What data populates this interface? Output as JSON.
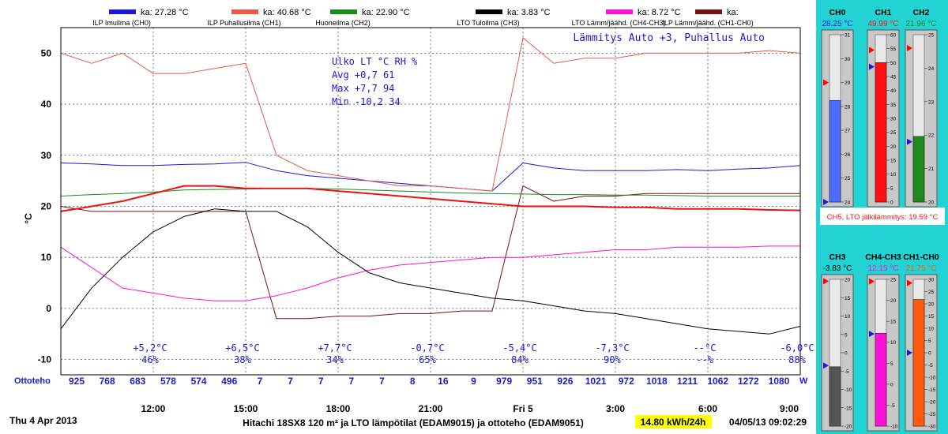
{
  "header": {
    "legend": [
      {
        "name": "ILP Imuilma (CH0)",
        "ka": "ka: 27.28 °C",
        "color": "#1a1ad4"
      },
      {
        "name": "ILP Puhallusilma (CH1)",
        "ka": "ka: 40.68 °C",
        "color": "#e85a4a"
      },
      {
        "name": "Huoneilma (CH2)",
        "ka": "ka: 22.90 °C",
        "color": "#1e8a1e"
      },
      {
        "name": "LTO Tuloilma (CH3)",
        "ka": "ka: 3.83 °C",
        "color": "#000000"
      },
      {
        "name": "LTO Lämm/jäähd. (CH4-CH3)",
        "ka": "ka: 8.72 °C",
        "color": "#ff10d8"
      },
      {
        "name": "ILP Lämm/jäähd. (CH1-CH0)",
        "ka": "ka:",
        "color": "#7a1010"
      }
    ]
  },
  "overlay": {
    "mode": "Lämmitys Auto +3, Puhallus Auto",
    "stats": [
      "Ulko LT °C RH %",
      " Avg  +0,7  61",
      " Max  +7,7  94",
      " Min -10,2  34"
    ]
  },
  "outdoor": [
    {
      "t": "+5,2°C",
      "rh": "46%"
    },
    {
      "t": "+6,5°C",
      "rh": "38%"
    },
    {
      "t": "+7,7°C",
      "rh": "34%"
    },
    {
      "t": "-0,7°C",
      "rh": "65%"
    },
    {
      "t": "-5,4°C",
      "rh": "84%"
    },
    {
      "t": "-7,3°C",
      "rh": "90%"
    },
    {
      "t": "--°C",
      "rh": "--%"
    },
    {
      "t": "-6,0°C",
      "rh": "88%"
    }
  ],
  "power": {
    "label": "Ottoteho",
    "unit": "W",
    "values": [
      "925",
      "768",
      "683",
      "578",
      "574",
      "496",
      "7",
      "7",
      "7",
      "7",
      "7",
      "8",
      "16",
      "9",
      "979",
      "951",
      "926",
      "1021",
      "972",
      "1018",
      "1211",
      "1062",
      "1272",
      "1080"
    ]
  },
  "footer": {
    "date": "Thu 4 Apr 2013",
    "title": "Hitachi 18SX8 120 m² ja LTO lämpötilat (EDAM9015) ja ottoteho (EDAM9051)",
    "energy": "14.80 kWh/24h",
    "timestamp": "04/05/13 09:02:29"
  },
  "side": {
    "ch5": "CH5, LTO jälkilämmitys: 19.59 °C",
    "gauges": [
      {
        "name": "CH0",
        "value": "28.25 °C",
        "level": 28.25,
        "min": 24,
        "max": 31,
        "color": "#4a6cff",
        "vcolor": "#1a1ad4",
        "ticks": [
          "31",
          "30",
          "29",
          "28",
          "27",
          "26",
          "25",
          "24"
        ],
        "markers": [
          29.0,
          24.0
        ]
      },
      {
        "name": "CH1",
        "value": "49.99 °C",
        "level": 49.99,
        "min": 0,
        "max": 60,
        "color": "#ff1010",
        "vcolor": "#ff1010",
        "ticks": [
          "60",
          "55",
          "50",
          "45",
          "40",
          "35",
          "30",
          "25",
          "20",
          "15",
          "10",
          "5",
          "0"
        ],
        "markers": [
          54.5,
          48.5
        ]
      },
      {
        "name": "CH2",
        "value": "21.96 °C",
        "level": 21.96,
        "min": 20,
        "max": 25,
        "color": "#1e8a1e",
        "vcolor": "#1e8a1e",
        "ticks": [
          "25",
          "24",
          "23",
          "22",
          "21",
          "20"
        ],
        "markers": [
          24.6,
          21.8
        ]
      },
      {
        "name": "CH3",
        "value": "-3.83 °C",
        "level": -3.83,
        "min": -20,
        "max": 20,
        "color": "#555555",
        "vcolor": "#000000",
        "ticks": [
          "20",
          "15",
          "10",
          "5",
          "0",
          "-5",
          "-10",
          "-15",
          "-20"
        ],
        "markers": [
          19.5,
          -3.5
        ]
      },
      {
        "name": "CH4-CH3",
        "value": "12.15 °C",
        "level": 12.15,
        "min": -10,
        "max": 25,
        "color": "#ff10d8",
        "vcolor": "#ff10d8",
        "ticks": [
          "25",
          "20",
          "15",
          "10",
          "5",
          "0",
          "-5",
          "-10"
        ],
        "markers": [
          24.5,
          12.0
        ]
      },
      {
        "name": "CH1-CH0",
        "value": "21.75 °C",
        "level": 21.75,
        "min": -30,
        "max": 30,
        "color": "#ff5a10",
        "vcolor": "#ff5a10",
        "ticks": [
          "30",
          "25",
          "20",
          "15",
          "10",
          "5",
          "0",
          "-5",
          "-10",
          "-15",
          "-20",
          "-25",
          "-30"
        ],
        "markers": [
          28.5,
          0.0
        ]
      }
    ]
  },
  "chart_data": {
    "type": "line",
    "ylabel": "°C",
    "ylim": [
      -13,
      55
    ],
    "yticks": [
      "50",
      "40",
      "30",
      "20",
      "10",
      "0",
      "-10"
    ],
    "xticks": [
      "12:00",
      "15:00",
      "18:00",
      "21:00",
      "Fri 5",
      "3:00",
      "6:00",
      "9:00"
    ],
    "x_hours": [
      9,
      10,
      11,
      12,
      13,
      14,
      15,
      16,
      17,
      18,
      19,
      20,
      21,
      22,
      23,
      24,
      25,
      26,
      27,
      28,
      29,
      30,
      31,
      32,
      33
    ],
    "series": [
      {
        "name": "ILP Imuilma (CH0)",
        "color": "#1a1ad4",
        "values": [
          28.5,
          28.3,
          28.0,
          28.0,
          28.2,
          28.3,
          28.6,
          27.0,
          26.0,
          25.5,
          25.0,
          24.5,
          24.0,
          23.5,
          23.0,
          28.5,
          27.5,
          27.0,
          27.0,
          27.0,
          27.2,
          27.0,
          27.3,
          27.5,
          28.0
        ]
      },
      {
        "name": "ILP Puhallusilma (CH1)",
        "color": "#e85a4a",
        "values": [
          50.0,
          48.0,
          50.0,
          46.0,
          46.0,
          47.0,
          48.0,
          30.0,
          27.0,
          26.0,
          25.0,
          24.0,
          24.0,
          23.5,
          23.0,
          53.0,
          48.0,
          49.0,
          49.0,
          50.0,
          50.0,
          50.0,
          50.0,
          50.5,
          50.0
        ]
      },
      {
        "name": "Huoneilma (CH2)",
        "color": "#1e8a1e",
        "values": [
          22.0,
          22.3,
          22.5,
          22.8,
          23.2,
          23.3,
          23.4,
          23.5,
          23.5,
          23.4,
          23.2,
          23.0,
          22.8,
          22.6,
          22.5,
          22.4,
          22.3,
          22.3,
          22.2,
          22.2,
          22.1,
          22.0,
          22.0,
          22.0,
          22.0
        ]
      },
      {
        "name": "LTO Tuloilma (CH3)",
        "color": "#000000",
        "values": [
          -4.0,
          4.0,
          10.0,
          15.0,
          18.0,
          19.5,
          19.0,
          19.0,
          16.0,
          11.0,
          7.0,
          5.0,
          4.0,
          3.0,
          2.0,
          1.5,
          0.5,
          -0.5,
          -1.0,
          -2.0,
          -3.0,
          -4.0,
          -4.5,
          -5.0,
          -3.5
        ]
      },
      {
        "name": "LTO Lämm/jäähd. (CH4-CH3)",
        "color": "#ff10d8",
        "values": [
          12.0,
          8.0,
          4.0,
          3.0,
          2.0,
          1.5,
          1.5,
          2.5,
          4.0,
          6.0,
          7.5,
          8.5,
          9.0,
          9.5,
          10.0,
          10.0,
          10.5,
          11.0,
          11.5,
          11.5,
          12.0,
          12.0,
          12.0,
          12.2,
          12.2
        ]
      },
      {
        "name": "ILP Lämm/jäähd. (CH1-CH0)",
        "color": "#7a1010",
        "values": [
          20.0,
          19.0,
          19.0,
          19.0,
          19.0,
          19.0,
          19.0,
          -2.0,
          -2.0,
          -1.5,
          -1.5,
          -1.0,
          -1.0,
          -0.5,
          -0.5,
          24.0,
          21.0,
          22.0,
          22.0,
          22.5,
          22.5,
          22.5,
          22.5,
          22.5,
          22.5
        ]
      },
      {
        "name": "",
        "color": "#ee1010",
        "values": [
          19.0,
          20.0,
          21.0,
          22.5,
          24.0,
          24.0,
          23.5,
          23.5,
          23.5,
          23.0,
          22.5,
          22.0,
          21.5,
          21.0,
          20.5,
          20.0,
          20.0,
          20.0,
          19.8,
          19.8,
          19.5,
          19.5,
          19.5,
          19.3,
          19.2
        ]
      }
    ]
  }
}
